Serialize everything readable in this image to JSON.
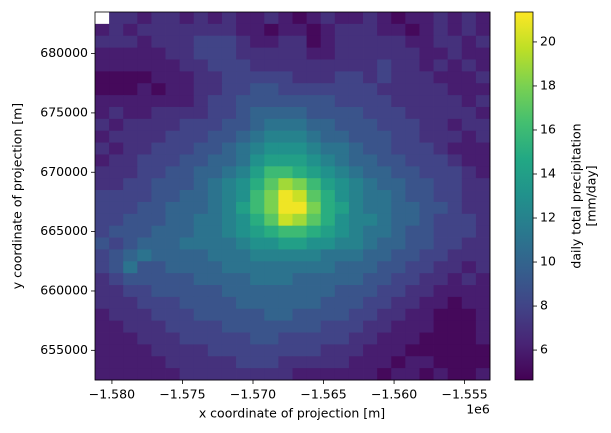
{
  "chart_data": {
    "type": "heatmap",
    "xlabel": "x coordinate of projection [m]",
    "ylabel": "y coordinate of projection [m]",
    "x_offset_label": "1e6",
    "colorbar_label": [
      "daily total precipitation",
      "[mm/day]"
    ],
    "cmap": "viridis",
    "xlim": [
      -1581200,
      -1553200
    ],
    "ylim": [
      652500,
      683500
    ],
    "xticks": [
      {
        "value": -1580000,
        "label": "−1.580"
      },
      {
        "value": -1575000,
        "label": "−1.575"
      },
      {
        "value": -1570000,
        "label": "−1.570"
      },
      {
        "value": -1565000,
        "label": "−1.565"
      },
      {
        "value": -1560000,
        "label": "−1.560"
      },
      {
        "value": -1555000,
        "label": "−1.555"
      }
    ],
    "yticks": [
      655000,
      660000,
      665000,
      670000,
      675000,
      680000
    ],
    "clim": [
      4.64,
      21.36
    ],
    "cticks": [
      6,
      8,
      10,
      12,
      14,
      16,
      18,
      20
    ],
    "z": [
      [
        null,
        7,
        7,
        6,
        7,
        7,
        6,
        7,
        6,
        7,
        6,
        6,
        7,
        6,
        5,
        6,
        7,
        6,
        6,
        7,
        6,
        5,
        6,
        6,
        7,
        6,
        7,
        6
      ],
      [
        6,
        7,
        6,
        7,
        7,
        7,
        7,
        7,
        7,
        7,
        6,
        6,
        5,
        6,
        6,
        5,
        6,
        7,
        7,
        7,
        6,
        6,
        5,
        6,
        7,
        6,
        7,
        6
      ],
      [
        7,
        7,
        7,
        6,
        7,
        7,
        7,
        8,
        8,
        8,
        7,
        6,
        6,
        7,
        7,
        5,
        6,
        7,
        7,
        7,
        7,
        7,
        6,
        6,
        7,
        7,
        6,
        7
      ],
      [
        6,
        6,
        6,
        6,
        6,
        7,
        7,
        8,
        8,
        8,
        7,
        7,
        7,
        7,
        7,
        6,
        6,
        7,
        7,
        7,
        7,
        7,
        7,
        6,
        6,
        7,
        6,
        6
      ],
      [
        6,
        6,
        6,
        6,
        6,
        6,
        7,
        7,
        8,
        8,
        8,
        7,
        7,
        7,
        7,
        7,
        7,
        7,
        7,
        7,
        8,
        7,
        7,
        6,
        7,
        6,
        7,
        6
      ],
      [
        5,
        5,
        5,
        5,
        6,
        6,
        6,
        7,
        7,
        8,
        8,
        8,
        8,
        8,
        7,
        7,
        7,
        8,
        8,
        7,
        8,
        7,
        7,
        7,
        6,
        6,
        6,
        7
      ],
      [
        5,
        5,
        5,
        6,
        5,
        6,
        6,
        7,
        7,
        8,
        8,
        9,
        9,
        8,
        8,
        8,
        8,
        8,
        8,
        8,
        7,
        7,
        7,
        7,
        7,
        6,
        6,
        6
      ],
      [
        6,
        6,
        6,
        6,
        6,
        6,
        6,
        7,
        8,
        8,
        9,
        9,
        9,
        9,
        9,
        9,
        9,
        8,
        8,
        8,
        8,
        7,
        7,
        7,
        7,
        7,
        6,
        7
      ],
      [
        6,
        7,
        6,
        6,
        7,
        7,
        7,
        7,
        8,
        8,
        9,
        10,
        10,
        10,
        10,
        9,
        9,
        9,
        9,
        8,
        8,
        8,
        7,
        7,
        7,
        7,
        7,
        6
      ],
      [
        7,
        6,
        7,
        7,
        7,
        7,
        8,
        8,
        8,
        9,
        9,
        10,
        11,
        11,
        11,
        10,
        10,
        9,
        9,
        9,
        8,
        8,
        8,
        7,
        7,
        6,
        7,
        7
      ],
      [
        6,
        7,
        7,
        7,
        7,
        8,
        8,
        8,
        9,
        9,
        10,
        11,
        12,
        12,
        12,
        11,
        10,
        10,
        9,
        9,
        9,
        8,
        8,
        7,
        7,
        7,
        6,
        7
      ],
      [
        7,
        6,
        7,
        7,
        8,
        8,
        8,
        9,
        9,
        10,
        11,
        12,
        13,
        13,
        13,
        12,
        11,
        11,
        10,
        9,
        9,
        8,
        8,
        8,
        7,
        6,
        6,
        6
      ],
      [
        6,
        7,
        7,
        8,
        8,
        8,
        9,
        9,
        10,
        10,
        11,
        13,
        14,
        14,
        14,
        13,
        12,
        11,
        10,
        10,
        9,
        9,
        8,
        8,
        8,
        7,
        6,
        6
      ],
      [
        7,
        7,
        7,
        8,
        8,
        9,
        9,
        10,
        10,
        11,
        12,
        14,
        16,
        16,
        15,
        14,
        13,
        12,
        11,
        10,
        10,
        9,
        9,
        8,
        8,
        8,
        7,
        6
      ],
      [
        7,
        7,
        8,
        8,
        9,
        9,
        9,
        10,
        11,
        12,
        13,
        15,
        17,
        19,
        18,
        16,
        14,
        13,
        12,
        11,
        10,
        10,
        9,
        9,
        8,
        8,
        7,
        7
      ],
      [
        8,
        8,
        8,
        8,
        9,
        9,
        10,
        10,
        11,
        12,
        13,
        16,
        18,
        21,
        20,
        17,
        15,
        13,
        12,
        11,
        11,
        10,
        9,
        9,
        8,
        8,
        7,
        7
      ],
      [
        8,
        8,
        8,
        9,
        9,
        10,
        10,
        10,
        11,
        12,
        14,
        16,
        18,
        21,
        21,
        18,
        15,
        14,
        12,
        11,
        11,
        10,
        10,
        9,
        9,
        8,
        7,
        7
      ],
      [
        8,
        8,
        9,
        9,
        9,
        10,
        10,
        11,
        11,
        12,
        13,
        15,
        17,
        20,
        19,
        17,
        15,
        13,
        12,
        12,
        11,
        10,
        10,
        9,
        8,
        8,
        8,
        7
      ],
      [
        8,
        9,
        9,
        9,
        10,
        10,
        10,
        11,
        11,
        12,
        13,
        14,
        15,
        16,
        16,
        15,
        14,
        13,
        12,
        11,
        11,
        10,
        9,
        9,
        8,
        8,
        8,
        7
      ],
      [
        9,
        8,
        9,
        10,
        10,
        10,
        11,
        11,
        11,
        11,
        12,
        13,
        13,
        14,
        14,
        13,
        13,
        12,
        12,
        11,
        10,
        10,
        9,
        9,
        8,
        8,
        7,
        7
      ],
      [
        8,
        9,
        10,
        11,
        10,
        10,
        10,
        10,
        11,
        11,
        11,
        12,
        12,
        12,
        12,
        12,
        11,
        11,
        11,
        10,
        10,
        9,
        9,
        8,
        8,
        7,
        7,
        7
      ],
      [
        8,
        9,
        11,
        9,
        9,
        10,
        10,
        10,
        10,
        11,
        11,
        11,
        11,
        11,
        11,
        11,
        11,
        10,
        10,
        10,
        9,
        9,
        8,
        8,
        7,
        7,
        6,
        7
      ],
      [
        7,
        8,
        9,
        9,
        9,
        9,
        9,
        10,
        10,
        10,
        10,
        11,
        11,
        11,
        10,
        10,
        10,
        10,
        10,
        9,
        9,
        8,
        8,
        7,
        7,
        6,
        7,
        6
      ],
      [
        7,
        7,
        8,
        8,
        9,
        9,
        9,
        9,
        9,
        10,
        10,
        10,
        10,
        10,
        10,
        10,
        10,
        9,
        9,
        9,
        8,
        8,
        7,
        7,
        6,
        6,
        6,
        6
      ],
      [
        7,
        7,
        7,
        8,
        8,
        8,
        9,
        9,
        9,
        9,
        10,
        10,
        10,
        10,
        10,
        10,
        9,
        9,
        9,
        8,
        8,
        7,
        7,
        6,
        6,
        5,
        6,
        6
      ],
      [
        6,
        7,
        7,
        7,
        8,
        8,
        8,
        9,
        9,
        9,
        9,
        9,
        10,
        10,
        9,
        9,
        9,
        9,
        8,
        8,
        7,
        7,
        6,
        6,
        5,
        5,
        5,
        6
      ],
      [
        6,
        6,
        7,
        7,
        7,
        8,
        8,
        8,
        8,
        9,
        9,
        9,
        9,
        9,
        9,
        9,
        8,
        8,
        8,
        7,
        7,
        6,
        6,
        6,
        5,
        5,
        5,
        6
      ],
      [
        6,
        6,
        6,
        7,
        7,
        7,
        8,
        8,
        8,
        8,
        8,
        9,
        9,
        8,
        8,
        8,
        8,
        8,
        7,
        7,
        6,
        6,
        6,
        5,
        5,
        5,
        5,
        6
      ],
      [
        6,
        6,
        6,
        6,
        7,
        7,
        7,
        7,
        8,
        8,
        8,
        8,
        8,
        8,
        8,
        8,
        7,
        7,
        7,
        6,
        6,
        6,
        5,
        5,
        5,
        5,
        5,
        5
      ],
      [
        6,
        6,
        6,
        6,
        6,
        7,
        7,
        7,
        7,
        7,
        8,
        8,
        8,
        7,
        7,
        7,
        7,
        7,
        6,
        6,
        6,
        5,
        6,
        6,
        5,
        5,
        5,
        5
      ],
      [
        6,
        6,
        6,
        6,
        6,
        6,
        7,
        7,
        7,
        7,
        7,
        7,
        7,
        7,
        6,
        6,
        6,
        6,
        6,
        6,
        5,
        6,
        6,
        5,
        6,
        5,
        5,
        6
      ]
    ]
  }
}
